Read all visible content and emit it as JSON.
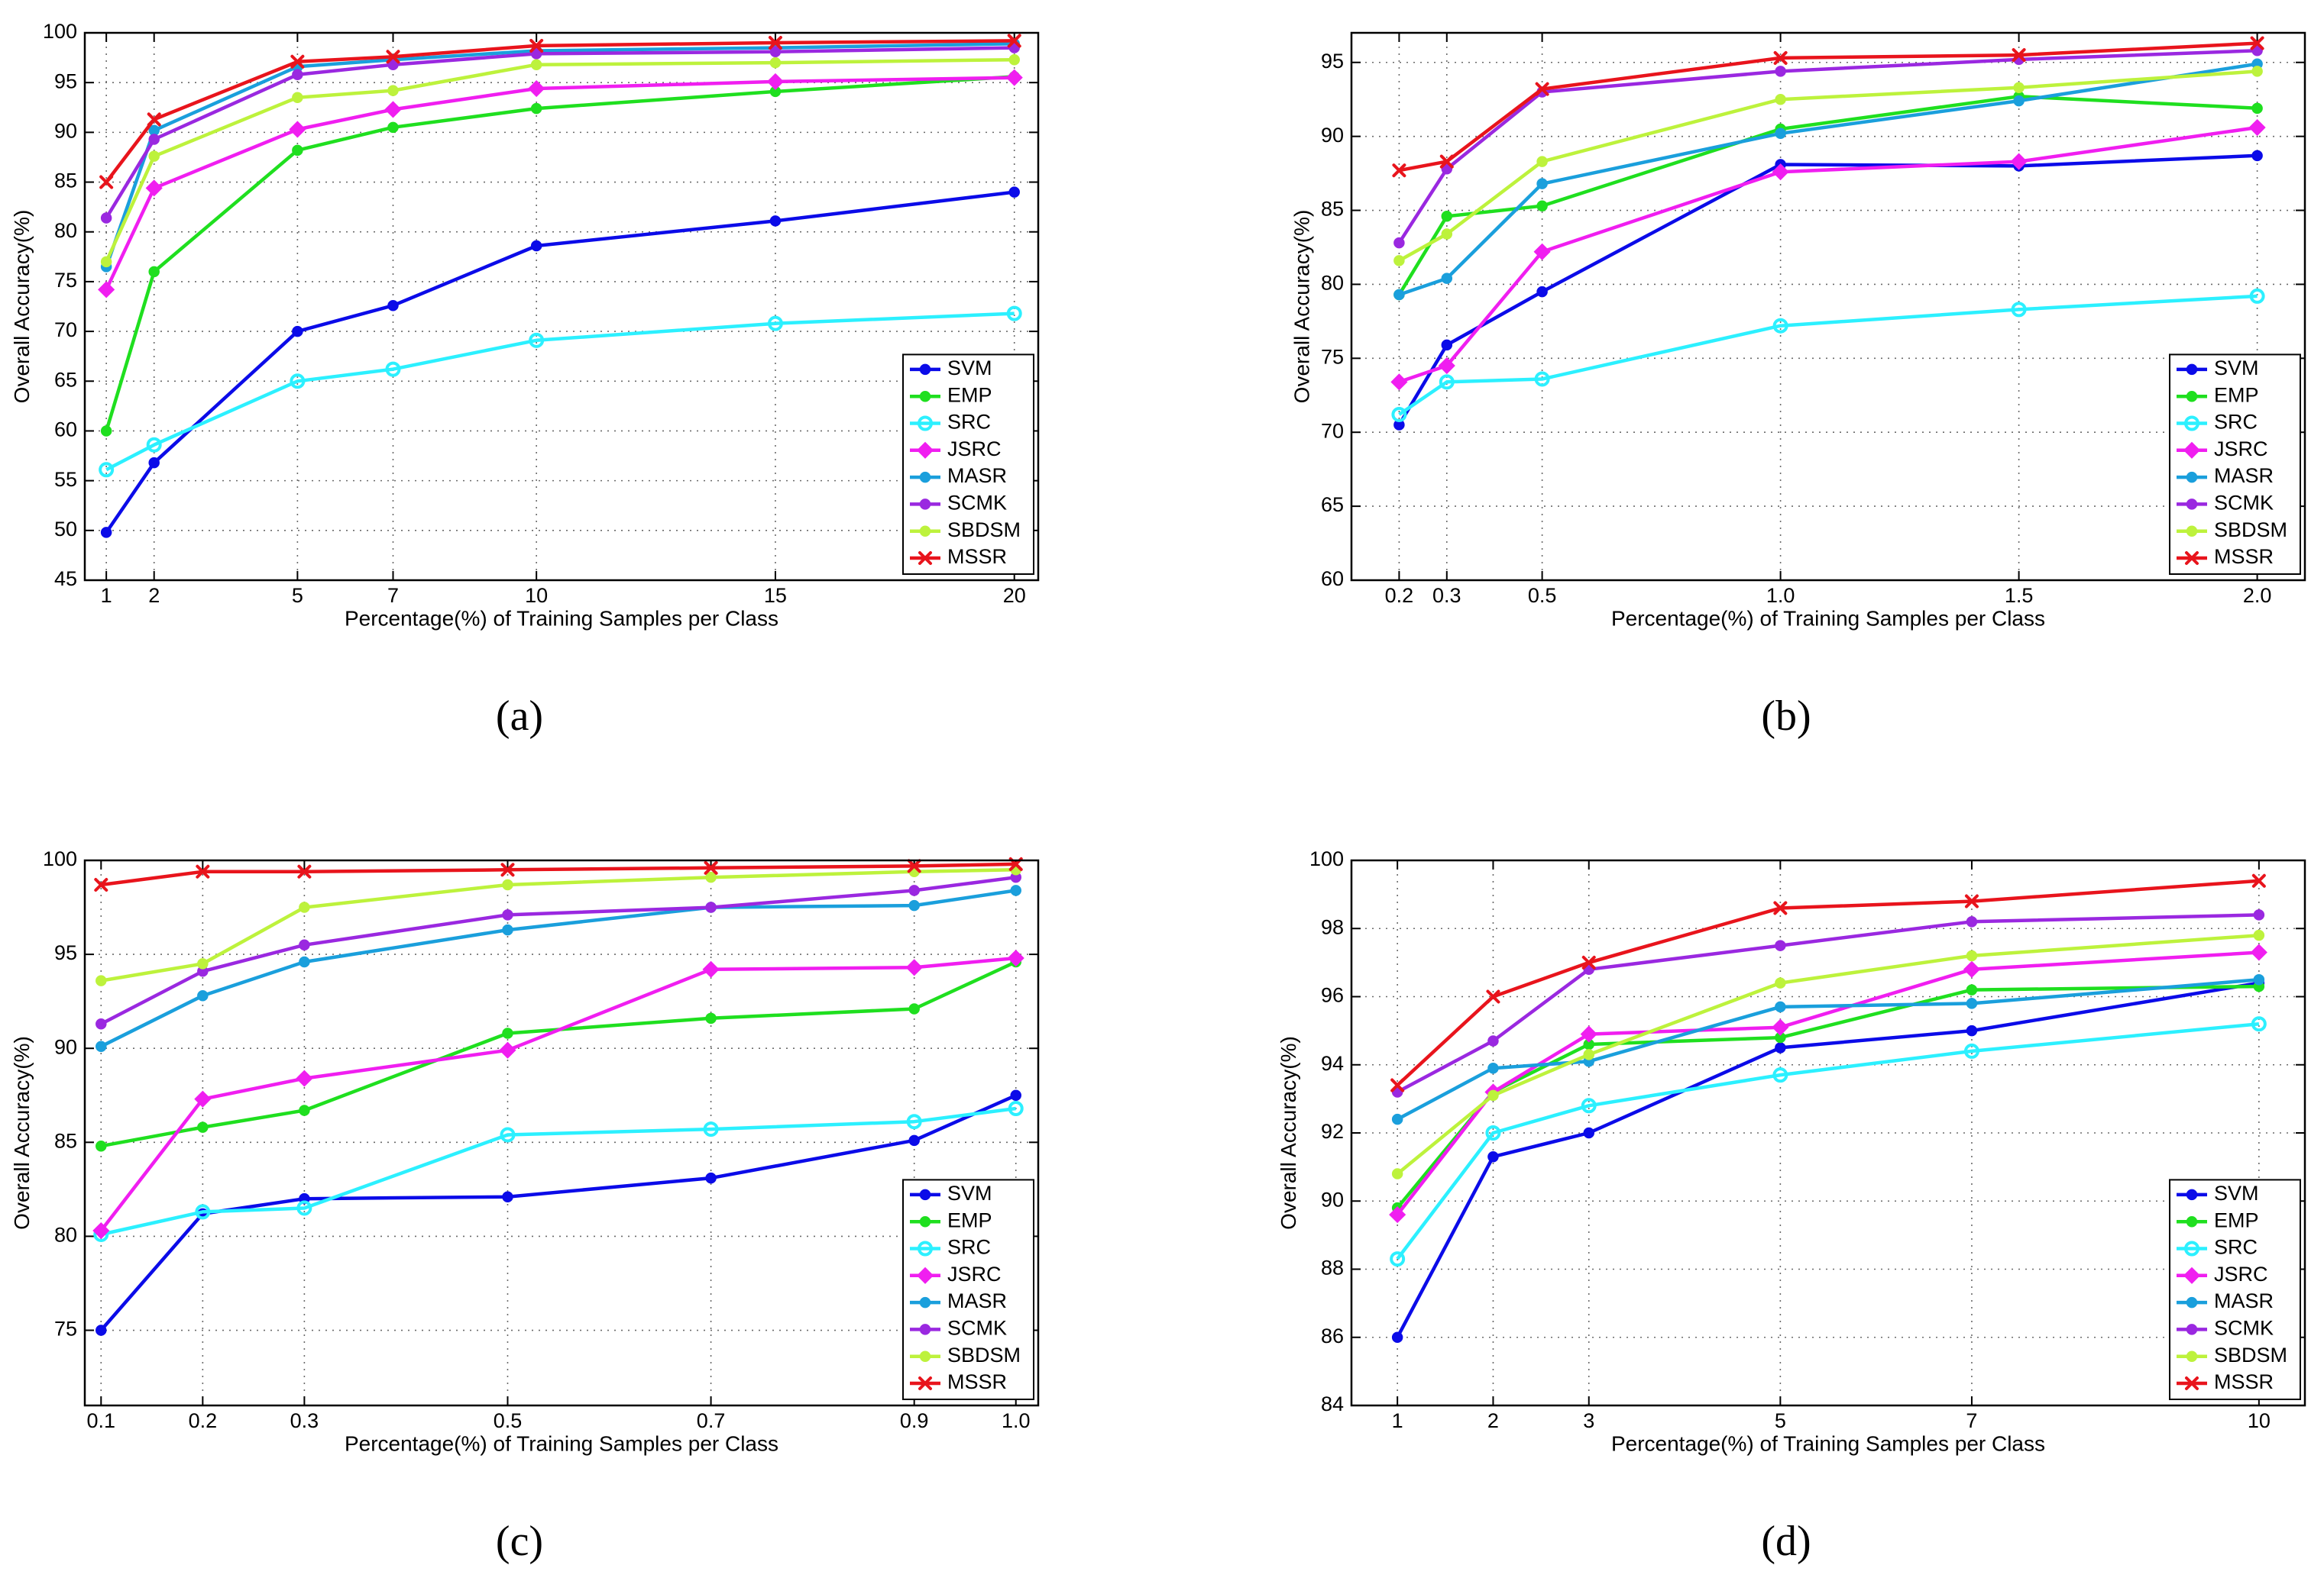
{
  "chart_data": [
    {
      "type": "line",
      "caption": "(a)",
      "xlabel": "Percentage(%) of Training Samples per Class",
      "ylabel": "Overall Accuracy(%)",
      "xlim": [
        0.55,
        20.5
      ],
      "ylim": [
        45,
        100
      ],
      "xticks": [
        1,
        2,
        5,
        7,
        10,
        15,
        20
      ],
      "xtick_labels": [
        "1",
        "2",
        "5",
        "7",
        "10",
        "15",
        "20"
      ],
      "yticks": [
        45,
        50,
        55,
        60,
        65,
        70,
        75,
        80,
        85,
        90,
        95,
        100
      ],
      "ytick_labels": [
        "45",
        "50",
        "55",
        "60",
        "65",
        "70",
        "75",
        "80",
        "85",
        "90",
        "95",
        "100"
      ],
      "grid": true,
      "legend": "bottom-right",
      "x": [
        1,
        2,
        5,
        7,
        10,
        15,
        20
      ],
      "series": [
        {
          "name": "SVM",
          "color": "#0b0be8",
          "marker": "dot",
          "values": [
            49.8,
            56.8,
            70.0,
            72.6,
            78.6,
            81.1,
            84.0
          ]
        },
        {
          "name": "EMP",
          "color": "#1fdf1f",
          "marker": "dot",
          "values": [
            60.0,
            76.0,
            88.2,
            90.5,
            92.4,
            94.1,
            95.6
          ]
        },
        {
          "name": "SRC",
          "color": "#2cf0ff",
          "marker": "circle",
          "values": [
            56.1,
            58.6,
            65.0,
            66.2,
            69.1,
            70.8,
            71.8
          ]
        },
        {
          "name": "JSRC",
          "color": "#f01ef0",
          "marker": "diamond",
          "values": [
            74.2,
            84.4,
            90.3,
            92.3,
            94.4,
            95.1,
            95.5
          ]
        },
        {
          "name": "MASR",
          "color": "#1a9fdc",
          "marker": "dot",
          "values": [
            76.5,
            90.2,
            96.6,
            97.3,
            98.2,
            98.5,
            98.9
          ]
        },
        {
          "name": "SCMK",
          "color": "#9a28e0",
          "marker": "dot",
          "values": [
            81.4,
            89.3,
            95.8,
            96.8,
            97.9,
            98.1,
            98.5
          ]
        },
        {
          "name": "SBDSM",
          "color": "#bdf23c",
          "marker": "dot",
          "values": [
            77.0,
            87.6,
            93.5,
            94.2,
            96.8,
            97.0,
            97.3
          ]
        },
        {
          "name": "MSSR",
          "color": "#e8141c",
          "marker": "x",
          "values": [
            85.0,
            91.3,
            97.1,
            97.6,
            98.7,
            99.0,
            99.2
          ]
        }
      ]
    },
    {
      "type": "line",
      "caption": "(b)",
      "xlabel": "Percentage(%) of Training Samples per Class",
      "ylabel": "Overall Accuracy(%)",
      "xlim": [
        0.1,
        2.1
      ],
      "ylim": [
        60,
        97
      ],
      "xticks": [
        0.2,
        0.3,
        0.5,
        1.0,
        1.5,
        2.0
      ],
      "xtick_labels": [
        "0.2",
        "0.3",
        "0.5",
        "1.0",
        "1.5",
        "2.0"
      ],
      "yticks": [
        60,
        65,
        70,
        75,
        80,
        85,
        90,
        95
      ],
      "ytick_labels": [
        "60",
        "65",
        "70",
        "75",
        "80",
        "85",
        "90",
        "95"
      ],
      "grid": true,
      "legend": "bottom-right",
      "x": [
        0.2,
        0.3,
        0.5,
        1.0,
        1.5,
        2.0
      ],
      "series": [
        {
          "name": "SVM",
          "color": "#0b0be8",
          "marker": "dot",
          "values": [
            70.5,
            75.9,
            79.5,
            88.1,
            88.0,
            88.7
          ]
        },
        {
          "name": "EMP",
          "color": "#1fdf1f",
          "marker": "dot",
          "values": [
            79.3,
            84.6,
            85.3,
            90.5,
            92.7,
            91.9
          ]
        },
        {
          "name": "SRC",
          "color": "#2cf0ff",
          "marker": "circle",
          "values": [
            71.2,
            73.4,
            73.6,
            77.2,
            78.3,
            79.2
          ]
        },
        {
          "name": "JSRC",
          "color": "#f01ef0",
          "marker": "diamond",
          "values": [
            73.4,
            74.5,
            82.2,
            87.6,
            88.3,
            90.6
          ]
        },
        {
          "name": "MASR",
          "color": "#1a9fdc",
          "marker": "dot",
          "values": [
            79.3,
            80.4,
            86.8,
            90.2,
            92.4,
            94.9
          ]
        },
        {
          "name": "SCMK",
          "color": "#9a28e0",
          "marker": "dot",
          "values": [
            82.8,
            87.8,
            93.0,
            94.4,
            95.2,
            95.8
          ]
        },
        {
          "name": "SBDSM",
          "color": "#bdf23c",
          "marker": "dot",
          "values": [
            81.6,
            83.4,
            88.3,
            92.5,
            93.3,
            94.4
          ]
        },
        {
          "name": "MSSR",
          "color": "#e8141c",
          "marker": "x",
          "values": [
            87.7,
            88.3,
            93.2,
            95.3,
            95.5,
            96.3
          ]
        }
      ]
    },
    {
      "type": "line",
      "caption": "(c)",
      "xlabel": "Percentage(%) of Training Samples per Class",
      "ylabel": "Overall Accuracy(%)",
      "xlim": [
        0.084,
        1.022
      ],
      "ylim": [
        71,
        100
      ],
      "xticks": [
        0.1,
        0.2,
        0.3,
        0.5,
        0.7,
        0.9,
        1.0
      ],
      "xtick_labels": [
        "0.1",
        "0.2",
        "0.3",
        "0.5",
        "0.7",
        "0.9",
        "1.0"
      ],
      "yticks": [
        75,
        80,
        85,
        90,
        95,
        100
      ],
      "ytick_labels": [
        "75",
        "80",
        "85",
        "90",
        "95",
        "100"
      ],
      "grid": true,
      "legend": "bottom-right",
      "x": [
        0.1,
        0.2,
        0.3,
        0.5,
        0.7,
        0.9,
        1.0
      ],
      "series": [
        {
          "name": "SVM",
          "color": "#0b0be8",
          "marker": "dot",
          "values": [
            75.0,
            81.2,
            82.0,
            82.1,
            83.1,
            85.1,
            87.5
          ]
        },
        {
          "name": "EMP",
          "color": "#1fdf1f",
          "marker": "dot",
          "values": [
            84.8,
            85.8,
            86.7,
            90.8,
            91.6,
            92.1,
            94.6
          ]
        },
        {
          "name": "SRC",
          "color": "#2cf0ff",
          "marker": "circle",
          "values": [
            80.1,
            81.3,
            81.5,
            85.4,
            85.7,
            86.1,
            86.8
          ]
        },
        {
          "name": "JSRC",
          "color": "#f01ef0",
          "marker": "diamond",
          "values": [
            80.3,
            87.3,
            88.4,
            89.9,
            94.2,
            94.3,
            94.8
          ]
        },
        {
          "name": "MASR",
          "color": "#1a9fdc",
          "marker": "dot",
          "values": [
            90.1,
            92.8,
            94.6,
            96.3,
            97.5,
            97.6,
            98.4
          ]
        },
        {
          "name": "SCMK",
          "color": "#9a28e0",
          "marker": "dot",
          "values": [
            91.3,
            94.1,
            95.5,
            97.1,
            97.5,
            98.4,
            99.1
          ]
        },
        {
          "name": "SBDSM",
          "color": "#bdf23c",
          "marker": "dot",
          "values": [
            93.6,
            94.5,
            97.5,
            98.7,
            99.1,
            99.4,
            99.5
          ]
        },
        {
          "name": "MSSR",
          "color": "#e8141c",
          "marker": "x",
          "values": [
            98.7,
            99.4,
            99.4,
            99.5,
            99.6,
            99.7,
            99.8
          ]
        }
      ]
    },
    {
      "type": "line",
      "caption": "(d)",
      "xlabel": "Percentage(%) of Training Samples per Class",
      "ylabel": "Overall Accuracy(%)",
      "xlim": [
        0.52,
        10.48
      ],
      "ylim": [
        84,
        100
      ],
      "xticks": [
        1,
        2,
        3,
        5,
        7,
        10
      ],
      "xtick_labels": [
        "1",
        "2",
        "3",
        "5",
        "7",
        "10"
      ],
      "yticks": [
        84,
        86,
        88,
        90,
        92,
        94,
        96,
        98,
        100
      ],
      "ytick_labels": [
        "84",
        "86",
        "88",
        "90",
        "92",
        "94",
        "96",
        "98",
        "100"
      ],
      "grid": true,
      "legend": "bottom-right",
      "x": [
        1,
        2,
        3,
        5,
        7,
        10
      ],
      "series": [
        {
          "name": "SVM",
          "color": "#0b0be8",
          "marker": "dot",
          "values": [
            86.0,
            91.3,
            92.0,
            94.5,
            95.0,
            96.4
          ]
        },
        {
          "name": "EMP",
          "color": "#1fdf1f",
          "marker": "dot",
          "values": [
            89.8,
            93.2,
            94.6,
            94.8,
            96.2,
            96.3
          ]
        },
        {
          "name": "SRC",
          "color": "#2cf0ff",
          "marker": "circle",
          "values": [
            88.3,
            92.0,
            92.8,
            93.7,
            94.4,
            95.2
          ]
        },
        {
          "name": "JSRC",
          "color": "#f01ef0",
          "marker": "diamond",
          "values": [
            89.6,
            93.2,
            94.9,
            95.1,
            96.8,
            97.3
          ]
        },
        {
          "name": "MASR",
          "color": "#1a9fdc",
          "marker": "dot",
          "values": [
            92.4,
            93.9,
            94.1,
            95.7,
            95.8,
            96.5
          ]
        },
        {
          "name": "SCMK",
          "color": "#9a28e0",
          "marker": "dot",
          "values": [
            93.2,
            94.7,
            96.8,
            97.5,
            98.2,
            98.4
          ]
        },
        {
          "name": "SBDSM",
          "color": "#bdf23c",
          "marker": "dot",
          "values": [
            90.8,
            93.1,
            94.3,
            96.4,
            97.2,
            97.8
          ]
        },
        {
          "name": "MSSR",
          "color": "#e8141c",
          "marker": "x",
          "values": [
            93.4,
            96.0,
            97.0,
            98.6,
            98.8,
            99.4
          ]
        }
      ]
    }
  ]
}
